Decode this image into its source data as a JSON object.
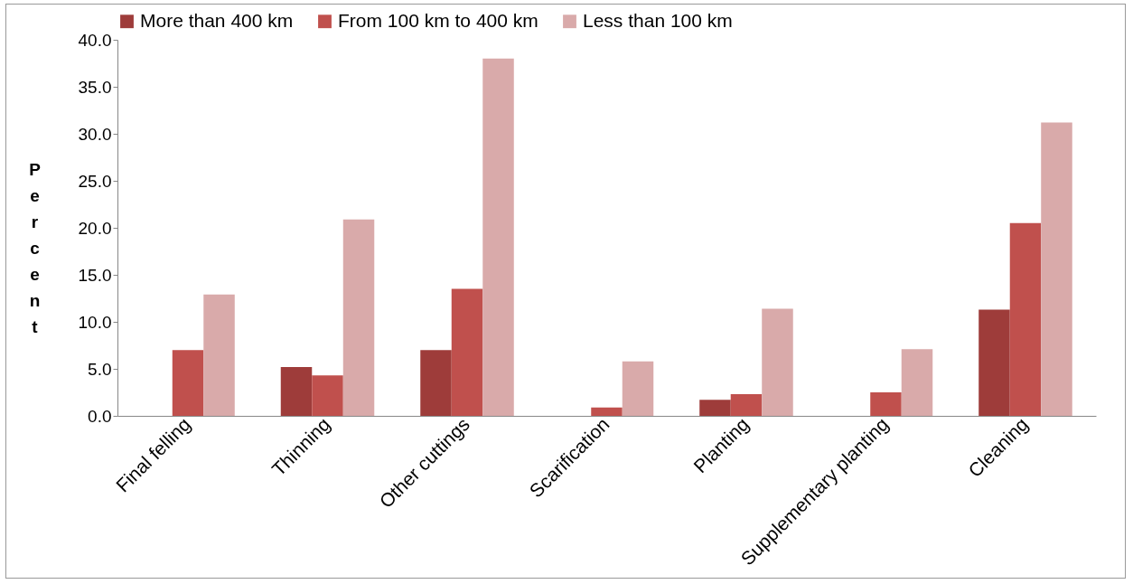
{
  "chart_data": {
    "type": "bar",
    "ylabel": "Percent",
    "categories": [
      "Final felling",
      "Thinning",
      "Other cuttings",
      "Scarification",
      "Planting",
      "Supplementary planting",
      "Cleaning"
    ],
    "series": [
      {
        "name": "More than 400 km",
        "color": "#9e3c3a",
        "values": [
          0,
          5.2,
          7.0,
          0,
          1.7,
          0,
          11.3
        ]
      },
      {
        "name": "From 100 km to 400 km",
        "color": "#c0504d",
        "values": [
          7.0,
          4.3,
          13.5,
          0.9,
          2.3,
          2.5,
          20.5
        ]
      },
      {
        "name": "Less than 100 km",
        "color": "#d9aaaa",
        "values": [
          12.9,
          20.9,
          38.0,
          5.8,
          11.4,
          7.1,
          31.2
        ]
      }
    ],
    "ylim": [
      0,
      40
    ],
    "yticks": [
      {
        "value": 0,
        "label": "0.0"
      },
      {
        "value": 5,
        "label": "5.0"
      },
      {
        "value": 10,
        "label": "10.0"
      },
      {
        "value": 15,
        "label": "15.0"
      },
      {
        "value": 20,
        "label": "20.0"
      },
      {
        "value": 25,
        "label": "25.0"
      },
      {
        "value": 30,
        "label": "30.0"
      },
      {
        "value": 35,
        "label": "35.0"
      },
      {
        "value": 40,
        "label": "40.0"
      }
    ],
    "grid": false,
    "legend": "top"
  }
}
